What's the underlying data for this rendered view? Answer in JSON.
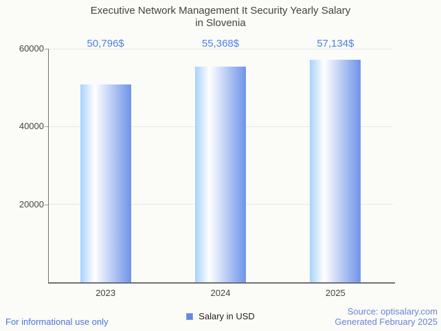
{
  "title": {
    "line1": "Executive Network Management It Security Yearly Salary",
    "line2": "in Slovenia"
  },
  "chart_data": {
    "type": "bar",
    "categories": [
      "2023",
      "2024",
      "2025"
    ],
    "series": [
      {
        "name": "Salary in USD",
        "values": [
          50796,
          55368,
          57134
        ]
      }
    ],
    "value_labels": [
      "50,796$",
      "55,368$",
      "57,134$"
    ],
    "title": "Executive Network Management It Security Yearly Salary in Slovenia",
    "xlabel": "",
    "ylabel": "",
    "ylim": [
      0,
      60000
    ],
    "yticks": [
      20000,
      40000,
      60000
    ],
    "ytick_labels": [
      "20000",
      "40000",
      "60000"
    ],
    "grid": true,
    "legend_position": "bottom"
  },
  "legend": {
    "label": "Salary in USD"
  },
  "footer": {
    "left": "For informational use only",
    "source": "Source: optisalary.com",
    "generated": "Generated February 2025"
  },
  "colors": {
    "background": "#fbfbf8",
    "title_text": "#424242",
    "axis_text": "#424242",
    "grid_line": "#e6e6e6",
    "axis_line": "#6f6f6f",
    "tick_mark": "#9a9a9a",
    "bar_gradient": [
      "#a7d2fb",
      "#ffffff",
      "#6e93e9"
    ],
    "value_label_text": "#4c80e8",
    "legend_marker_fill": "#5b8ae6",
    "legend_marker_border": "#8fa2c6",
    "legend_text": "#1f1f1f",
    "footer_left_text": "#4a74d8",
    "footer_right_text": "#6a83d6"
  }
}
